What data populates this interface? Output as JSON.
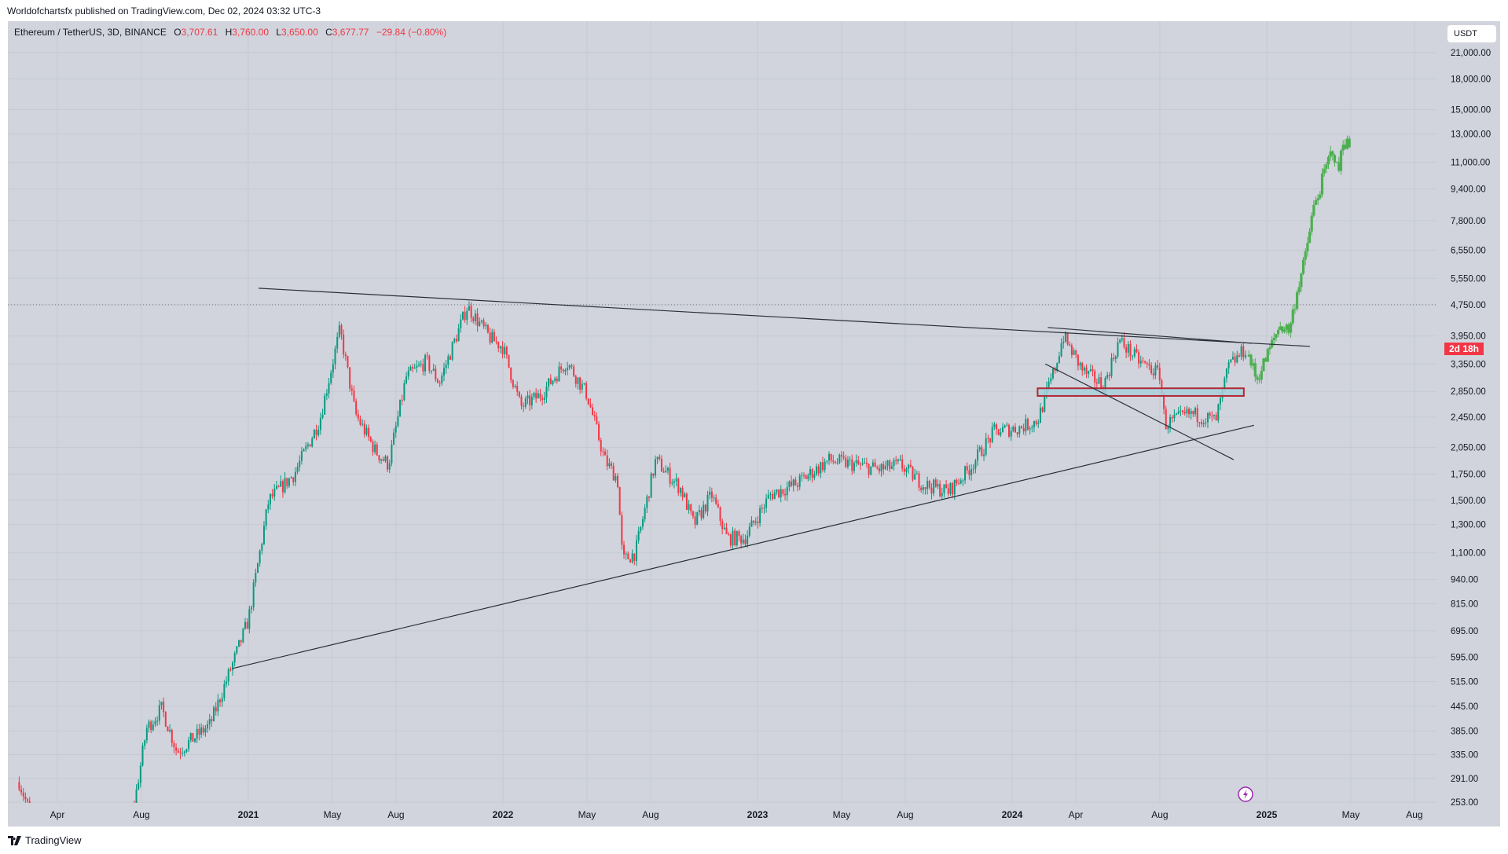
{
  "publish_line": "Worldofchartsfx published on TradingView.com, Dec 02, 2024 03:32 UTC-3",
  "legend": {
    "symbol": "Ethereum / TetherUS, 3D, BINANCE",
    "o_label": "O",
    "o": "3,707.61",
    "h_label": "H",
    "h": "3,760.00",
    "l_label": "L",
    "l": "3,650.00",
    "c_label": "C",
    "c": "3,677.77",
    "change": "−29.84 (−0.80%)"
  },
  "currency": "USDT",
  "countdown": "2d 18h",
  "footer_brand": "TradingView",
  "colors": {
    "up": "#089981",
    "down": "#f23645",
    "projection": "#4caf50",
    "zone_fill": "#a8d0dc",
    "zone_border": "#b22833",
    "background": "#d1d4dc",
    "trendline": "#2a2e39",
    "alert_icon": "#9c27b0"
  },
  "chart_data": {
    "type": "candlestick",
    "title": "Ethereum / TetherUS, 3D, BINANCE",
    "price_scale": "log",
    "ylim": [
      253,
      21000
    ],
    "y_ticks": [
      "21,000.00",
      "18,000.00",
      "15,000.00",
      "13,000.00",
      "11,000.00",
      "9,400.00",
      "7,800.00",
      "6,550.00",
      "5,550.00",
      "4,750.00",
      "3,950.00",
      "3,350.00",
      "2,850.00",
      "2,450.00",
      "2,050.00",
      "1,750.00",
      "1,500.00",
      "1,300.00",
      "1,100.00",
      "940.00",
      "815.00",
      "695.00",
      "595.00",
      "515.00",
      "445.00",
      "385.00",
      "335.00",
      "291.00",
      "253.00"
    ],
    "y_tick_values": [
      21000,
      18000,
      15000,
      13000,
      11000,
      9400,
      7800,
      6550,
      5550,
      4750,
      3950,
      3350,
      2850,
      2450,
      2050,
      1750,
      1500,
      1300,
      1100,
      940,
      815,
      695,
      595,
      515,
      445,
      385,
      335,
      291,
      253
    ],
    "x_ticks": [
      {
        "label": "Apr",
        "t": 2020.25,
        "year": false
      },
      {
        "label": "Aug",
        "t": 2020.58,
        "year": false
      },
      {
        "label": "2021",
        "t": 2021.0,
        "year": true
      },
      {
        "label": "May",
        "t": 2021.33,
        "year": false
      },
      {
        "label": "Aug",
        "t": 2021.58,
        "year": false
      },
      {
        "label": "2022",
        "t": 2022.0,
        "year": true
      },
      {
        "label": "May",
        "t": 2022.33,
        "year": false
      },
      {
        "label": "Aug",
        "t": 2022.58,
        "year": false
      },
      {
        "label": "2023",
        "t": 2023.0,
        "year": true
      },
      {
        "label": "May",
        "t": 2023.33,
        "year": false
      },
      {
        "label": "Aug",
        "t": 2023.58,
        "year": false
      },
      {
        "label": "2024",
        "t": 2024.0,
        "year": true
      },
      {
        "label": "Apr",
        "t": 2024.25,
        "year": false
      },
      {
        "label": "Aug",
        "t": 2024.58,
        "year": false
      },
      {
        "label": "2025",
        "t": 2025.0,
        "year": true
      },
      {
        "label": "May",
        "t": 2025.33,
        "year": false
      },
      {
        "label": "Aug",
        "t": 2025.58,
        "year": false
      }
    ],
    "series": [
      {
        "name": "ETHUSDT",
        "kind": "actual",
        "points": [
          [
            2020.1,
            285
          ],
          [
            2020.15,
            230
          ],
          [
            2020.2,
            120
          ],
          [
            2020.45,
            200
          ],
          [
            2020.55,
            245
          ],
          [
            2020.6,
            390
          ],
          [
            2020.66,
            440
          ],
          [
            2020.72,
            340
          ],
          [
            2020.85,
            400
          ],
          [
            2020.95,
            600
          ],
          [
            2021.0,
            740
          ],
          [
            2021.08,
            1500
          ],
          [
            2021.18,
            1750
          ],
          [
            2021.28,
            2400
          ],
          [
            2021.36,
            4100
          ],
          [
            2021.42,
            2500
          ],
          [
            2021.5,
            2000
          ],
          [
            2021.55,
            1850
          ],
          [
            2021.62,
            3100
          ],
          [
            2021.7,
            3400
          ],
          [
            2021.75,
            3000
          ],
          [
            2021.86,
            4700
          ],
          [
            2021.95,
            3900
          ],
          [
            2022.0,
            3700
          ],
          [
            2022.07,
            2600
          ],
          [
            2022.15,
            2800
          ],
          [
            2022.25,
            3400
          ],
          [
            2022.33,
            2800
          ],
          [
            2022.4,
            1900
          ],
          [
            2022.45,
            1700
          ],
          [
            2022.47,
            1050
          ],
          [
            2022.52,
            1100
          ],
          [
            2022.6,
            1900
          ],
          [
            2022.7,
            1600
          ],
          [
            2022.75,
            1300
          ],
          [
            2022.82,
            1550
          ],
          [
            2022.88,
            1200
          ],
          [
            2022.95,
            1200
          ],
          [
            2023.05,
            1550
          ],
          [
            2023.15,
            1650
          ],
          [
            2023.28,
            1900
          ],
          [
            2023.38,
            1850
          ],
          [
            2023.48,
            1800
          ],
          [
            2023.56,
            1850
          ],
          [
            2023.65,
            1650
          ],
          [
            2023.75,
            1580
          ],
          [
            2023.83,
            1800
          ],
          [
            2023.93,
            2250
          ],
          [
            2024.03,
            2300
          ],
          [
            2024.1,
            2400
          ],
          [
            2024.17,
            3300
          ],
          [
            2024.2,
            3950
          ],
          [
            2024.28,
            3200
          ],
          [
            2024.36,
            2950
          ],
          [
            2024.42,
            3850
          ],
          [
            2024.5,
            3400
          ],
          [
            2024.58,
            3150
          ],
          [
            2024.6,
            2350
          ],
          [
            2024.7,
            2500
          ],
          [
            2024.8,
            2400
          ],
          [
            2024.85,
            3300
          ],
          [
            2024.92,
            3678
          ]
        ]
      },
      {
        "name": "Projection",
        "kind": "projection",
        "points": [
          [
            2024.93,
            3500
          ],
          [
            2024.96,
            3050
          ],
          [
            2025.0,
            3500
          ],
          [
            2025.05,
            4200
          ],
          [
            2025.09,
            4100
          ],
          [
            2025.12,
            5200
          ],
          [
            2025.15,
            6200
          ],
          [
            2025.18,
            8200
          ],
          [
            2025.2,
            9000
          ],
          [
            2025.23,
            10500
          ],
          [
            2025.26,
            12000
          ],
          [
            2025.28,
            10200
          ],
          [
            2025.3,
            12600
          ],
          [
            2025.33,
            12000
          ]
        ]
      }
    ],
    "trendlines": [
      {
        "from": [
          2021.04,
          5236
        ],
        "to": [
          2025.17,
          3716
        ]
      },
      {
        "from": [
          2020.94,
          557
        ],
        "to": [
          2024.95,
          2334
        ]
      },
      {
        "from": [
          2024.14,
          4155
        ],
        "to": [
          2024.94,
          3785
        ]
      },
      {
        "from": [
          2024.13,
          3351
        ],
        "to": [
          2024.87,
          1906
        ]
      }
    ],
    "zone": {
      "from": 2024.1,
      "to": 2024.91,
      "top": 2903,
      "bottom": 2775
    },
    "reference_line": 4750,
    "last_price": 3677.77
  }
}
